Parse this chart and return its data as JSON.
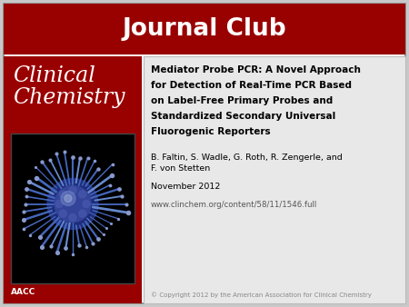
{
  "bg_color": "#d0d0d0",
  "header_color": "#990000",
  "header_text": "Journal Club",
  "header_text_color": "#ffffff",
  "left_panel_bg": "#990000",
  "left_panel_title1": "Clinical",
  "left_panel_title2": "Chemistry",
  "left_panel_text_color": "#ffffff",
  "aacc_label": "AACC",
  "right_panel_bg": "#e8e8e8",
  "right_panel_border": "#bbbbbb",
  "article_title_line1": "Mediator Probe PCR: A Novel Approach",
  "article_title_line2": "for Detection of Real-Time PCR Based",
  "article_title_line3": "on Label-Free Primary Probes and",
  "article_title_line4": "Standardized Secondary Universal",
  "article_title_line5": "Fluorogenic Reporters",
  "authors": "B. Faltin, S. Wadle, G. Roth, R. Zengerle, and\nF. von Stetten",
  "date": "November 2012",
  "url": "www.clinchem.org/content/58/11/1546.full",
  "copyright": "© Copyright 2012 by the American Association for Clinical Chemistry",
  "outer_bg": "#c8c8c8",
  "overall_border": "#aaaaaa"
}
